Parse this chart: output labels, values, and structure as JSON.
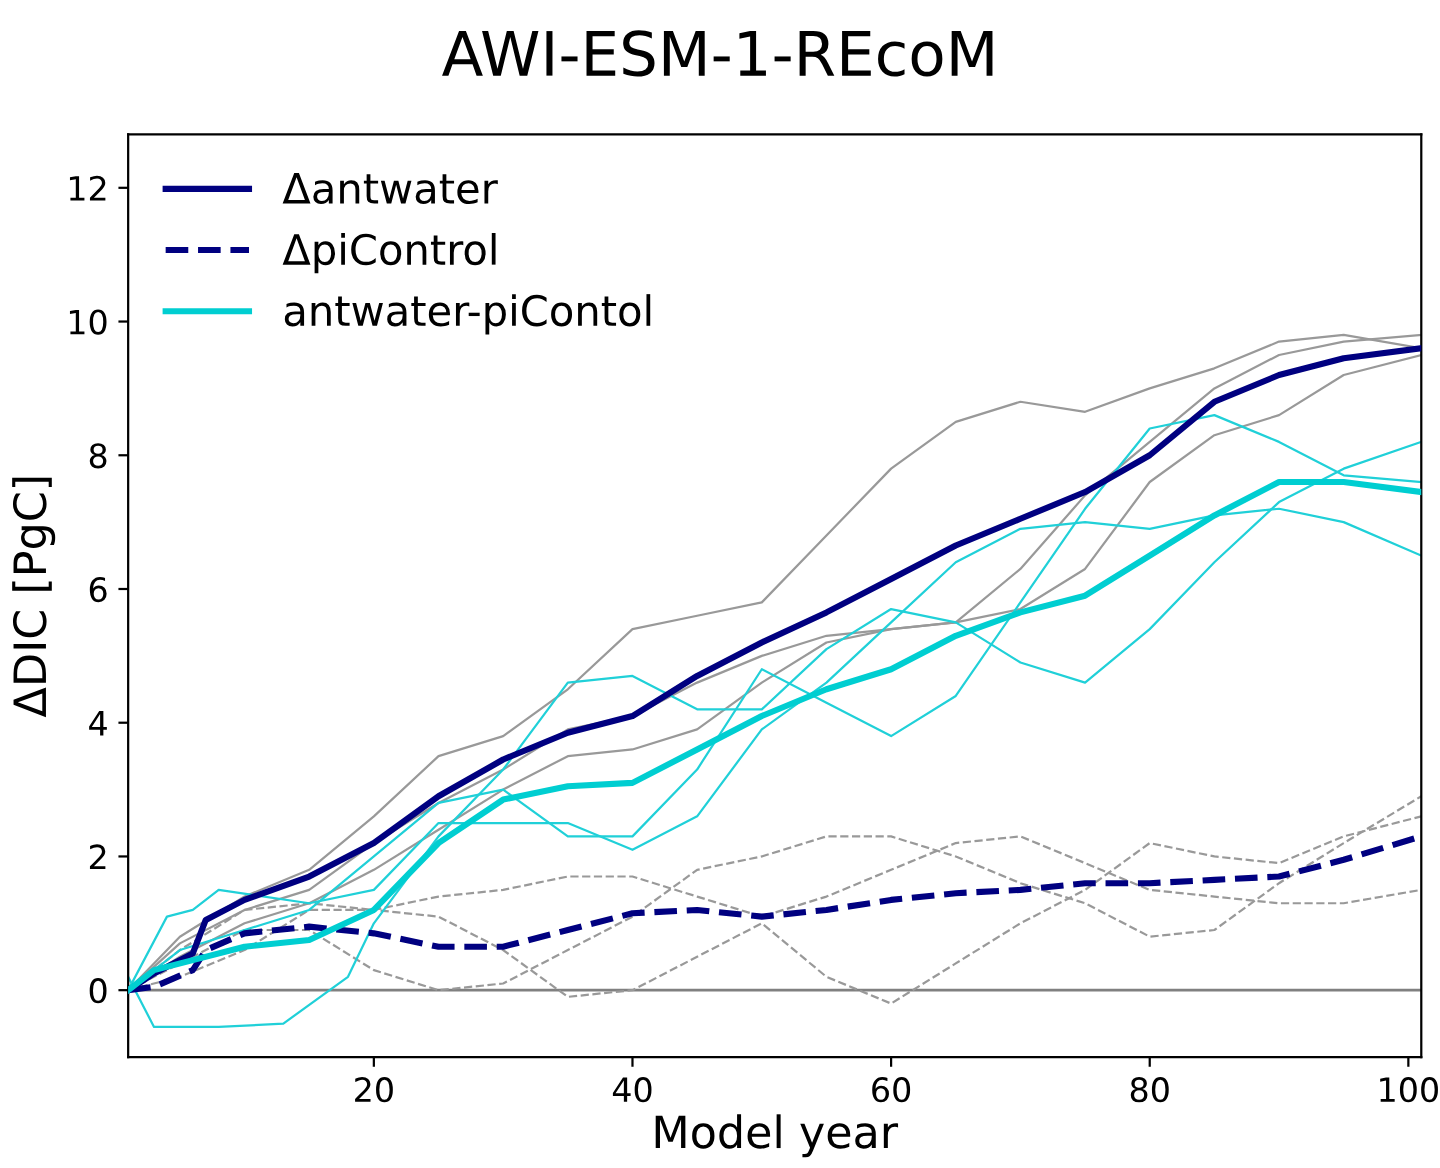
{
  "chart_data": {
    "type": "line",
    "title": "AWI-ESM-1-REcoM",
    "xlabel": "Model year",
    "ylabel": "ΔDIC [PgC]",
    "xlim": [
      1,
      101
    ],
    "ylim": [
      -1,
      12.8
    ],
    "xticks": [
      20,
      40,
      60,
      80,
      100
    ],
    "yticks": [
      0,
      2,
      4,
      6,
      8,
      10,
      12
    ],
    "grid": false,
    "legend": "top left",
    "marker": "none",
    "ref_lines": [
      {
        "axis": "y",
        "value": 0,
        "color": "#808080",
        "line_style": "solid"
      }
    ],
    "series": [
      {
        "color": "#999999",
        "line_style": "solid",
        "x": [
          1,
          5,
          10,
          15,
          20,
          25,
          30,
          35,
          40,
          45,
          50,
          55,
          60,
          65,
          70,
          75,
          80,
          85,
          90,
          95,
          101
        ],
        "values": [
          0,
          0.8,
          1.4,
          1.8,
          2.6,
          3.5,
          3.8,
          4.5,
          5.4,
          5.6,
          5.8,
          6.8,
          7.8,
          8.5,
          8.8,
          8.65,
          9.0,
          9.3,
          9.7,
          9.8,
          9.6
        ]
      },
      {
        "color": "#999999",
        "line_style": "solid",
        "x": [
          1,
          5,
          10,
          15,
          20,
          25,
          30,
          35,
          40,
          45,
          50,
          55,
          60,
          65,
          70,
          75,
          80,
          85,
          90,
          95,
          101
        ],
        "values": [
          0,
          0.7,
          1.2,
          1.5,
          2.2,
          2.8,
          3.3,
          3.9,
          4.1,
          4.6,
          5.0,
          5.3,
          5.4,
          5.5,
          6.3,
          7.4,
          8.2,
          9.0,
          9.5,
          9.7,
          9.8
        ]
      },
      {
        "color": "#999999",
        "line_style": "solid",
        "x": [
          1,
          5,
          10,
          15,
          20,
          25,
          30,
          35,
          40,
          45,
          50,
          55,
          60,
          65,
          70,
          75,
          80,
          85,
          90,
          95,
          101
        ],
        "values": [
          0,
          0.5,
          1.0,
          1.3,
          1.8,
          2.4,
          3.0,
          3.5,
          3.6,
          3.9,
          4.6,
          5.2,
          5.4,
          5.5,
          5.7,
          6.3,
          7.6,
          8.3,
          8.6,
          9.2,
          9.5
        ]
      },
      {
        "color": "#999999",
        "line_style": "dashed",
        "x": [
          1,
          5,
          10,
          15,
          20,
          25,
          30,
          35,
          40,
          45,
          50,
          55,
          60,
          65,
          70,
          75,
          80,
          85,
          90,
          95,
          101
        ],
        "values": [
          0,
          0.6,
          1.2,
          1.3,
          1.2,
          1.4,
          1.5,
          1.7,
          1.7,
          1.4,
          1.1,
          1.4,
          1.8,
          2.2,
          2.3,
          1.9,
          1.5,
          1.4,
          1.3,
          1.3,
          1.5
        ]
      },
      {
        "color": "#999999",
        "line_style": "dashed",
        "x": [
          1,
          5,
          10,
          15,
          20,
          25,
          30,
          35,
          40,
          45,
          50,
          55,
          60,
          65,
          70,
          75,
          80,
          85,
          90,
          95,
          101
        ],
        "values": [
          0,
          0.4,
          0.9,
          0.9,
          0.3,
          0.0,
          0.1,
          0.6,
          1.1,
          1.8,
          2.0,
          2.3,
          2.3,
          2.0,
          1.6,
          1.3,
          0.8,
          0.9,
          1.6,
          2.2,
          2.9
        ]
      },
      {
        "color": "#999999",
        "line_style": "dashed",
        "x": [
          1,
          5,
          10,
          15,
          20,
          25,
          30,
          35,
          40,
          45,
          50,
          55,
          60,
          65,
          70,
          75,
          80,
          85,
          90,
          95,
          101
        ],
        "values": [
          0,
          0.2,
          0.6,
          1.2,
          1.2,
          1.1,
          0.6,
          -0.1,
          0.0,
          0.5,
          1.0,
          0.2,
          -0.2,
          0.4,
          1.0,
          1.5,
          2.2,
          2.0,
          1.9,
          2.3,
          2.6
        ]
      },
      {
        "color": "#20d0d8",
        "line_style": "solid",
        "x": [
          1,
          4,
          6,
          8,
          15,
          20,
          25,
          30,
          35,
          40,
          45,
          50,
          55,
          60,
          65,
          70,
          75,
          80,
          85,
          90,
          95,
          101
        ],
        "values": [
          0,
          1.1,
          1.2,
          1.5,
          1.3,
          1.5,
          2.5,
          2.5,
          2.5,
          2.1,
          2.6,
          3.9,
          4.6,
          5.5,
          6.4,
          6.9,
          7.0,
          6.9,
          7.1,
          7.2,
          7.0,
          6.5
        ]
      },
      {
        "color": "#20d0d8",
        "line_style": "solid",
        "x": [
          1,
          3,
          8,
          13,
          18,
          20,
          25,
          30,
          35,
          40,
          45,
          50,
          55,
          60,
          65,
          70,
          75,
          80,
          85,
          90,
          95,
          101
        ],
        "values": [
          0.2,
          -0.55,
          -0.55,
          -0.5,
          0.2,
          1.0,
          2.3,
          3.3,
          4.6,
          4.7,
          4.2,
          4.2,
          5.1,
          5.7,
          5.5,
          4.9,
          4.6,
          5.4,
          6.4,
          7.3,
          7.8,
          8.2
        ]
      },
      {
        "color": "#20d0d8",
        "line_style": "solid",
        "x": [
          1,
          5,
          10,
          15,
          20,
          25,
          30,
          35,
          40,
          45,
          50,
          55,
          60,
          65,
          70,
          75,
          80,
          85,
          90,
          95,
          101
        ],
        "values": [
          0,
          0.6,
          0.9,
          1.2,
          2.0,
          2.8,
          3.0,
          2.3,
          2.3,
          3.3,
          4.8,
          4.3,
          3.8,
          4.4,
          5.8,
          7.2,
          8.4,
          8.6,
          8.2,
          7.7,
          7.6
        ]
      },
      {
        "name": "Δantwater",
        "color": "#000080",
        "line_style": "solid",
        "x": [
          1,
          3,
          6,
          7,
          10,
          15,
          20,
          25,
          30,
          35,
          40,
          45,
          50,
          55,
          60,
          65,
          70,
          75,
          80,
          85,
          90,
          95,
          101
        ],
        "values": [
          0,
          0.25,
          0.55,
          1.05,
          1.35,
          1.7,
          2.2,
          2.9,
          3.45,
          3.85,
          4.1,
          4.7,
          5.2,
          5.65,
          6.15,
          6.65,
          7.05,
          7.45,
          8.0,
          8.8,
          9.2,
          9.45,
          9.6
        ]
      },
      {
        "name": "ΔpiControl",
        "color": "#000080",
        "line_style": "dashed",
        "x": [
          1,
          3,
          6,
          7,
          10,
          15,
          20,
          25,
          30,
          35,
          40,
          45,
          50,
          55,
          60,
          65,
          70,
          75,
          80,
          85,
          90,
          95,
          101
        ],
        "values": [
          0,
          0.05,
          0.3,
          0.6,
          0.85,
          0.95,
          0.85,
          0.65,
          0.65,
          0.9,
          1.15,
          1.2,
          1.1,
          1.2,
          1.35,
          1.45,
          1.5,
          1.6,
          1.6,
          1.65,
          1.7,
          1.95,
          2.3
        ]
      },
      {
        "name": "antwater-piContol",
        "color": "#00ced1",
        "line_style": "solid",
        "x": [
          1,
          3,
          6,
          10,
          15,
          20,
          25,
          30,
          35,
          40,
          45,
          50,
          55,
          60,
          65,
          70,
          75,
          80,
          85,
          90,
          95,
          101
        ],
        "values": [
          0,
          0.3,
          0.45,
          0.65,
          0.75,
          1.2,
          2.2,
          2.85,
          3.05,
          3.1,
          3.6,
          4.1,
          4.5,
          4.8,
          5.3,
          5.65,
          5.9,
          6.5,
          7.1,
          7.6,
          7.6,
          7.45
        ]
      }
    ]
  }
}
